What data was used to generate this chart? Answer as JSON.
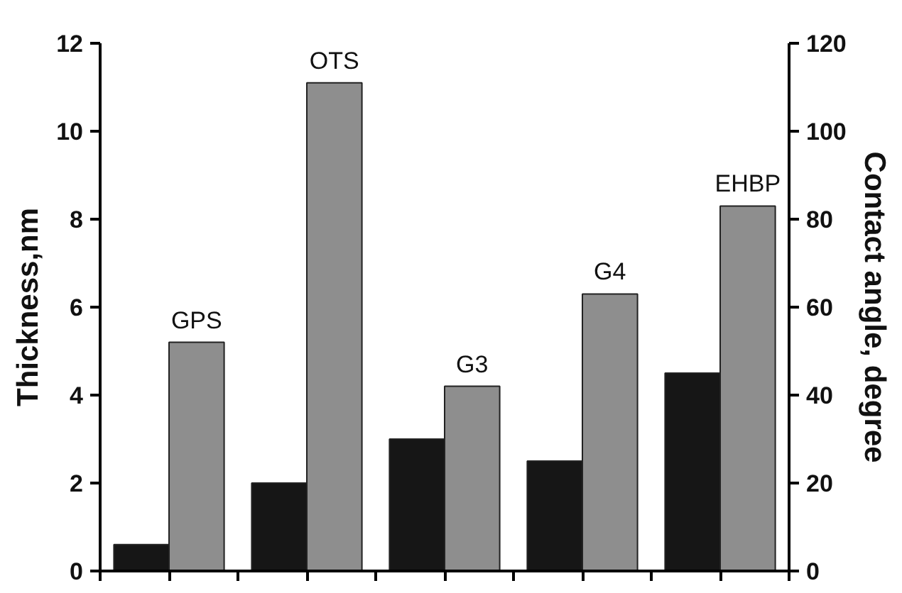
{
  "chart_data": {
    "type": "bar",
    "ylabel": "Thickness,nm",
    "y2label": "Contact angle, degree",
    "categories": [
      "GPS",
      "OTS",
      "G3",
      "G4",
      "EHBP"
    ],
    "series": [
      {
        "color": "#161616",
        "values": [
          0.6,
          2.0,
          3.0,
          2.5,
          4.5
        ]
      },
      {
        "color": "#8e8e8e",
        "values": [
          52,
          111,
          42,
          63,
          83
        ],
        "axis": "y2"
      }
    ],
    "ylim": [
      0,
      12
    ],
    "yticks": [
      0,
      2,
      4,
      6,
      8,
      10,
      12
    ],
    "y2lim": [
      0,
      120
    ],
    "y2ticks": [
      0,
      20,
      40,
      60,
      80,
      100,
      120
    ],
    "grid": false
  }
}
